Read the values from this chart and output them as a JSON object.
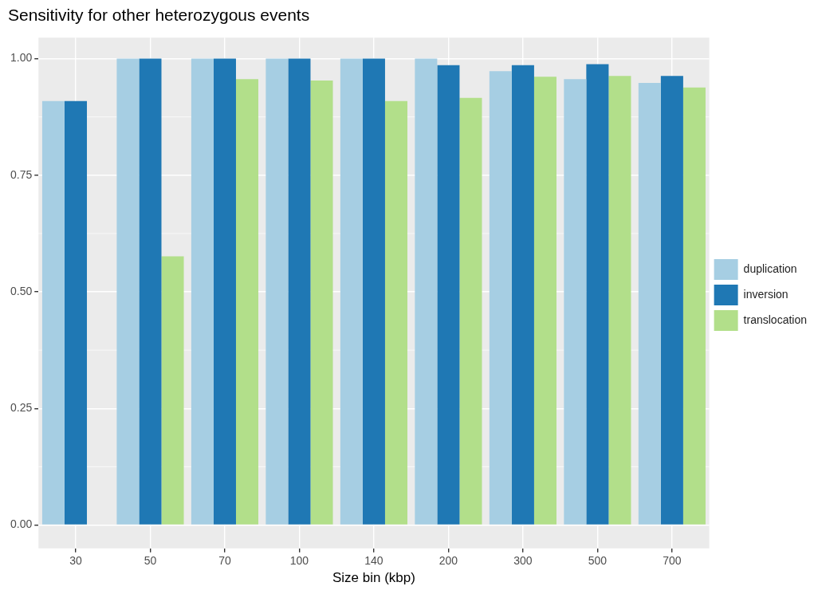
{
  "chart_data": {
    "type": "bar",
    "title": "Sensitivity for other heterozygous events",
    "xlabel": "Size bin (kbp)",
    "categories": [
      "30",
      "50",
      "70",
      "100",
      "140",
      "200",
      "300",
      "500",
      "700"
    ],
    "series": [
      {
        "name": "duplication",
        "color": "#a6cee3",
        "values": [
          0.909,
          1.0,
          1.0,
          1.0,
          1.0,
          1.0,
          0.973,
          0.956,
          0.948
        ]
      },
      {
        "name": "inversion",
        "color": "#1f78b4",
        "values": [
          0.909,
          1.0,
          1.0,
          1.0,
          1.0,
          0.986,
          0.986,
          0.988,
          0.963
        ]
      },
      {
        "name": "translocation",
        "color": "#b2df8a",
        "values": [
          null,
          0.576,
          0.956,
          0.953,
          0.909,
          0.916,
          0.961,
          0.963,
          0.938
        ]
      }
    ],
    "ylim": [
      -0.05,
      1.045
    ],
    "yticks": [
      {
        "value": 0,
        "label": "0.00"
      },
      {
        "value": 0.25,
        "label": "0.25"
      },
      {
        "value": 0.5,
        "label": "0.50"
      },
      {
        "value": 0.75,
        "label": "0.75"
      },
      {
        "value": 1,
        "label": "1.00"
      }
    ],
    "grid": true,
    "legend": "right"
  }
}
